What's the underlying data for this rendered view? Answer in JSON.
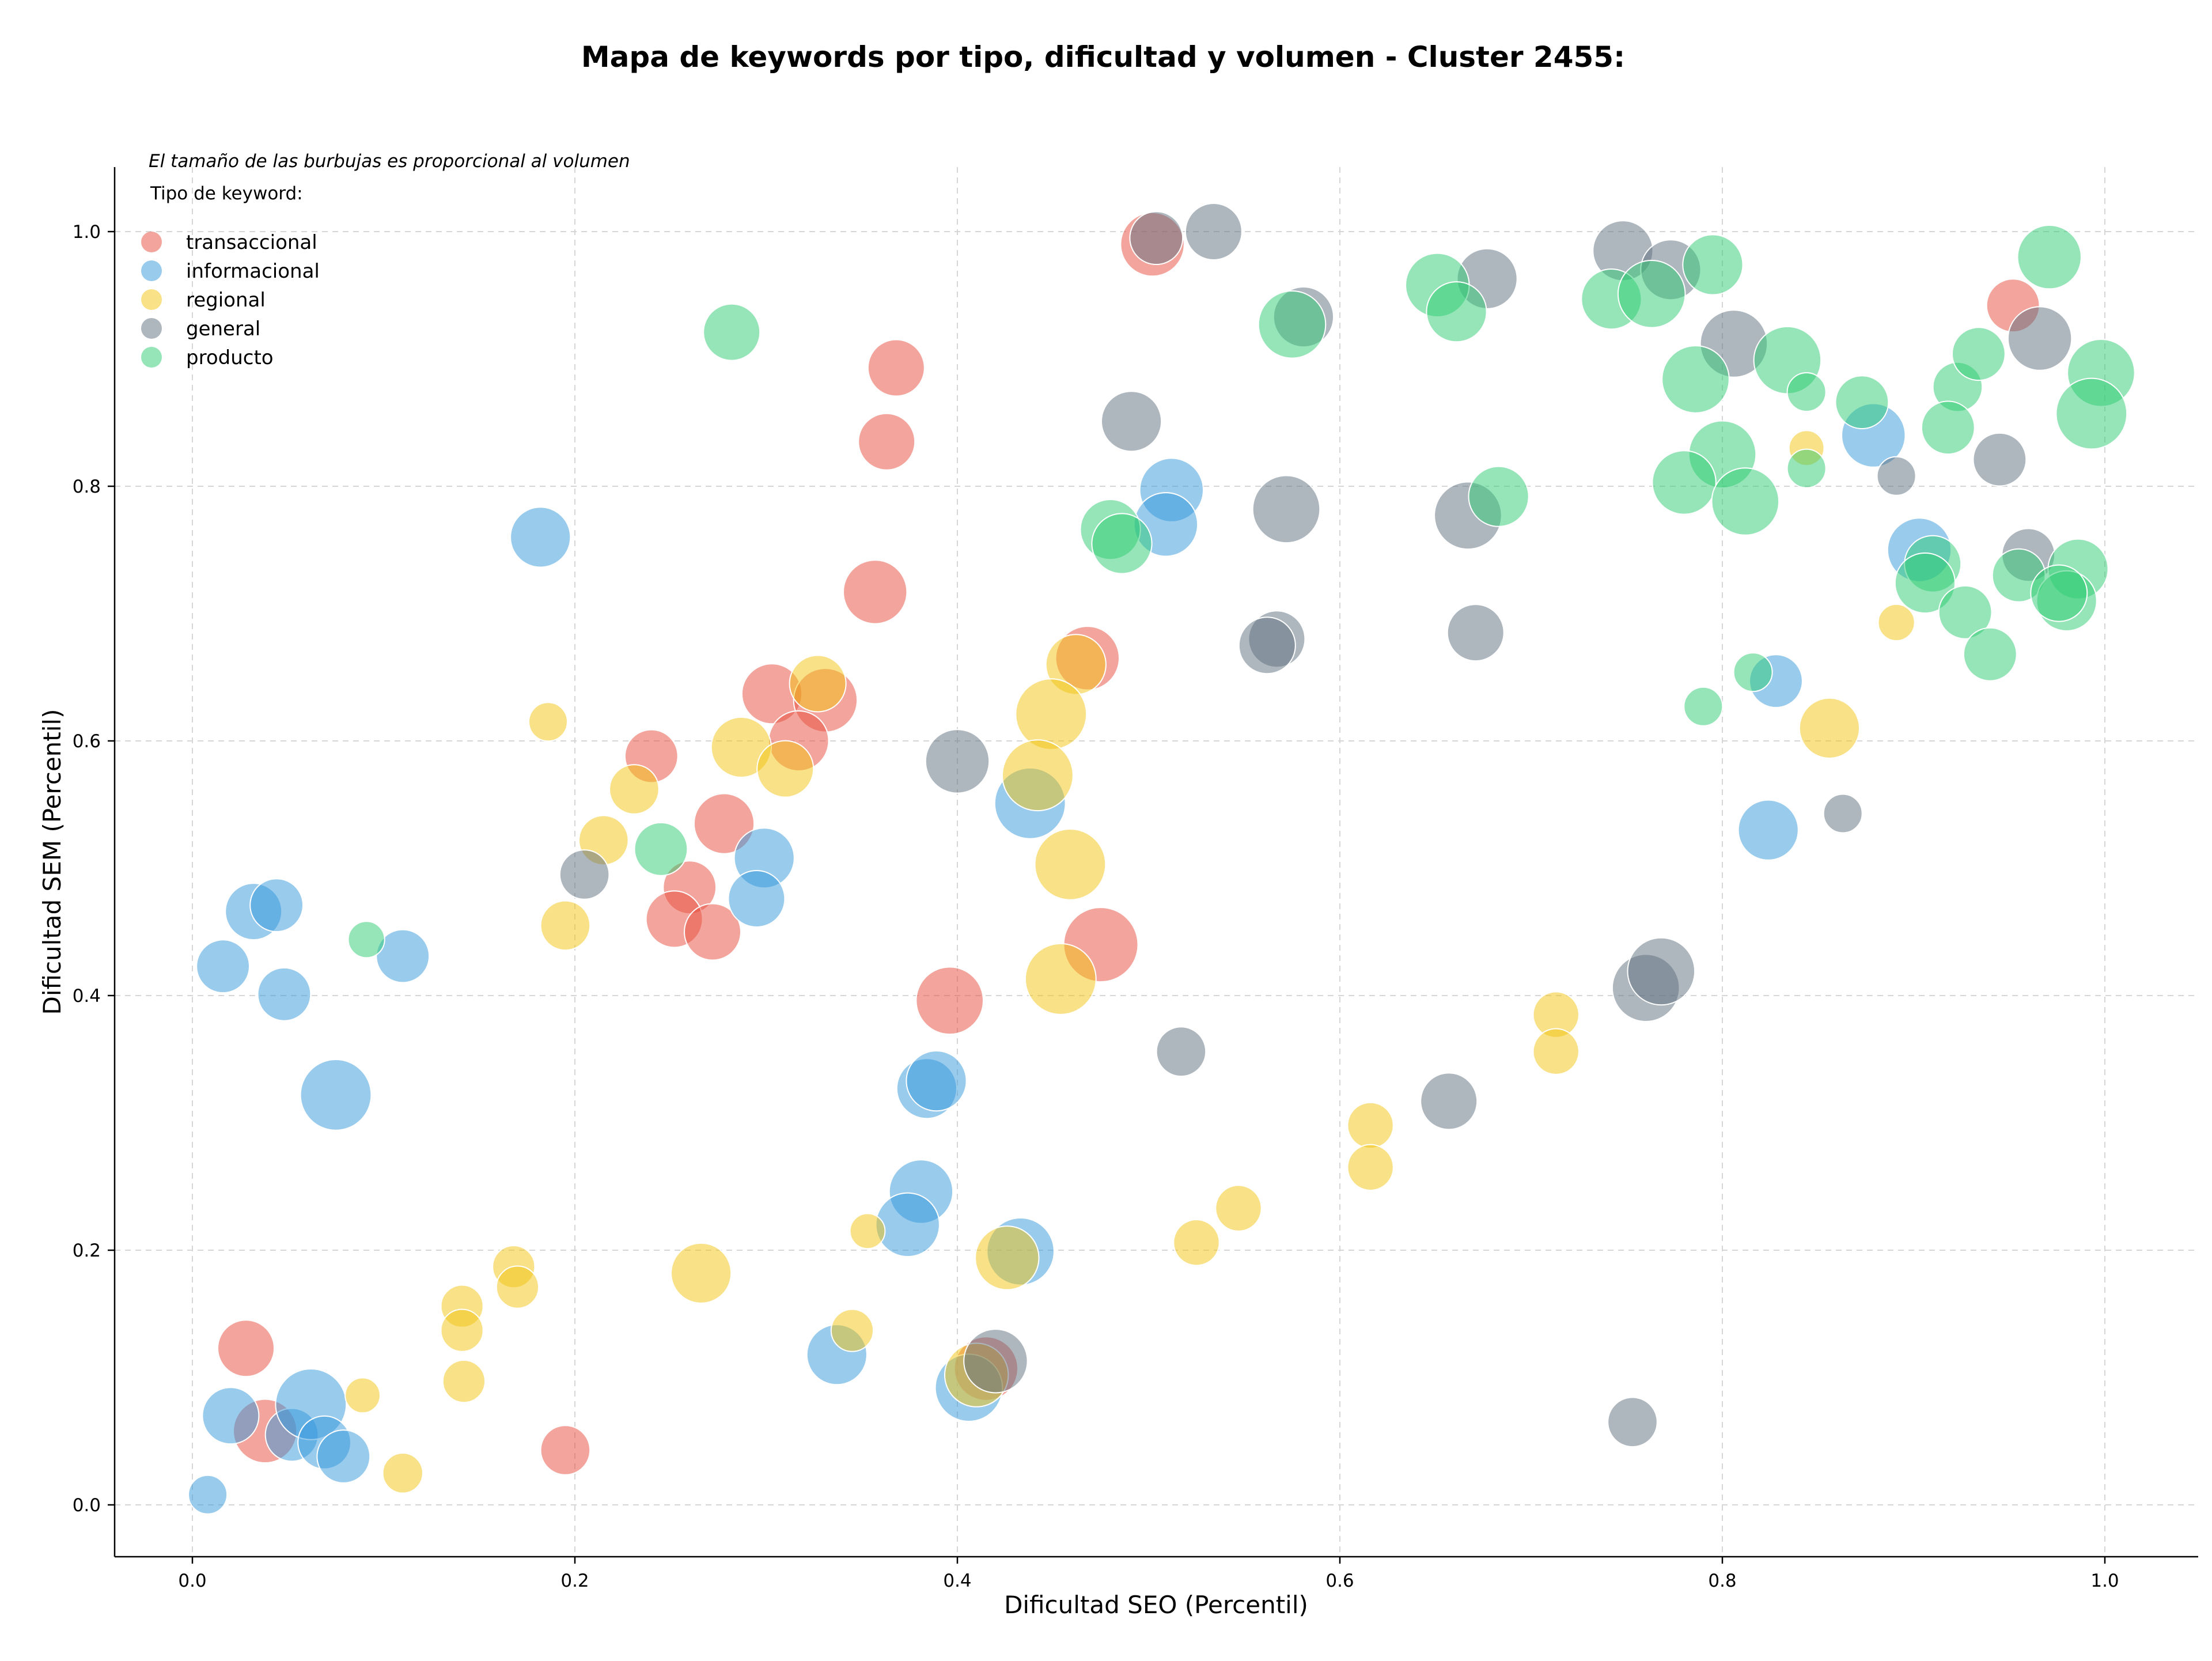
{
  "chart_data": {
    "type": "scatter",
    "title": "Mapa de keywords por tipo, dificultad y volumen - Cluster 2455:",
    "xlabel": "Dificultad SEO (Percentil)",
    "ylabel": "Dificultad SEM (Percentil)",
    "note": "El tamaño de las burbujas es proporcional al volumen",
    "legend_title": "Tipo de keyword:",
    "legend_position": "top-left",
    "grid": true,
    "xlim": [
      -0.04,
      1.05
    ],
    "ylim": [
      -0.04,
      1.05
    ],
    "x_ticks": [
      "0.0",
      "0.2",
      "0.4",
      "0.6",
      "0.8",
      "1.0"
    ],
    "y_ticks": [
      "0.0",
      "0.2",
      "0.4",
      "0.6",
      "0.8",
      "1.0"
    ],
    "series": [
      {
        "name": "transaccional",
        "color": "#e74c3c",
        "points": [
          [
            0.502,
            0.99,
            0.6
          ],
          [
            0.368,
            0.893,
            0.5
          ],
          [
            0.363,
            0.835,
            0.5
          ],
          [
            0.357,
            0.717,
            0.6
          ],
          [
            0.468,
            0.665,
            0.6
          ],
          [
            0.303,
            0.637,
            0.55
          ],
          [
            0.331,
            0.632,
            0.6
          ],
          [
            0.317,
            0.6,
            0.55
          ],
          [
            0.24,
            0.588,
            0.45
          ],
          [
            0.278,
            0.535,
            0.55
          ],
          [
            0.26,
            0.485,
            0.45
          ],
          [
            0.252,
            0.46,
            0.5
          ],
          [
            0.272,
            0.45,
            0.5
          ],
          [
            0.475,
            0.44,
            0.75
          ],
          [
            0.396,
            0.396,
            0.65
          ],
          [
            0.028,
            0.123,
            0.5
          ],
          [
            0.038,
            0.058,
            0.6
          ],
          [
            0.195,
            0.043,
            0.4
          ],
          [
            0.415,
            0.107,
            0.6
          ],
          [
            0.952,
            0.942,
            0.45
          ]
        ]
      },
      {
        "name": "informacional",
        "color": "#3498db",
        "points": [
          [
            0.182,
            0.76,
            0.55
          ],
          [
            0.512,
            0.797,
            0.6
          ],
          [
            0.509,
            0.77,
            0.6
          ],
          [
            0.438,
            0.551,
            0.7
          ],
          [
            0.299,
            0.508,
            0.55
          ],
          [
            0.295,
            0.476,
            0.5
          ],
          [
            0.032,
            0.466,
            0.5
          ],
          [
            0.044,
            0.471,
            0.45
          ],
          [
            0.016,
            0.423,
            0.45
          ],
          [
            0.048,
            0.401,
            0.45
          ],
          [
            0.11,
            0.431,
            0.45
          ],
          [
            0.075,
            0.322,
            0.7
          ],
          [
            0.384,
            0.327,
            0.55
          ],
          [
            0.389,
            0.333,
            0.55
          ],
          [
            0.381,
            0.246,
            0.6
          ],
          [
            0.374,
            0.22,
            0.6
          ],
          [
            0.433,
            0.199,
            0.65
          ],
          [
            0.337,
            0.118,
            0.55
          ],
          [
            0.406,
            0.092,
            0.65
          ],
          [
            0.02,
            0.07,
            0.5
          ],
          [
            0.052,
            0.055,
            0.45
          ],
          [
            0.062,
            0.079,
            0.7
          ],
          [
            0.069,
            0.049,
            0.45
          ],
          [
            0.079,
            0.038,
            0.45
          ],
          [
            0.008,
            0.008,
            0.25
          ],
          [
            0.879,
            0.84,
            0.6
          ],
          [
            0.903,
            0.75,
            0.6
          ],
          [
            0.828,
            0.647,
            0.45
          ],
          [
            0.824,
            0.53,
            0.55
          ]
        ]
      },
      {
        "name": "regional",
        "color": "#f1c40f",
        "points": [
          [
            0.186,
            0.615,
            0.25
          ],
          [
            0.327,
            0.645,
            0.5
          ],
          [
            0.287,
            0.595,
            0.55
          ],
          [
            0.31,
            0.578,
            0.5
          ],
          [
            0.231,
            0.562,
            0.4
          ],
          [
            0.215,
            0.522,
            0.4
          ],
          [
            0.195,
            0.455,
            0.4
          ],
          [
            0.462,
            0.66,
            0.55
          ],
          [
            0.449,
            0.621,
            0.7
          ],
          [
            0.442,
            0.573,
            0.7
          ],
          [
            0.459,
            0.503,
            0.7
          ],
          [
            0.454,
            0.413,
            0.7
          ],
          [
            0.168,
            0.187,
            0.3
          ],
          [
            0.17,
            0.171,
            0.3
          ],
          [
            0.141,
            0.156,
            0.3
          ],
          [
            0.141,
            0.137,
            0.3
          ],
          [
            0.142,
            0.097,
            0.3
          ],
          [
            0.11,
            0.025,
            0.27
          ],
          [
            0.089,
            0.086,
            0.2
          ],
          [
            0.266,
            0.182,
            0.55
          ],
          [
            0.353,
            0.215,
            0.2
          ],
          [
            0.345,
            0.137,
            0.3
          ],
          [
            0.426,
            0.194,
            0.6
          ],
          [
            0.41,
            0.102,
            0.6
          ],
          [
            0.525,
            0.206,
            0.35
          ],
          [
            0.547,
            0.233,
            0.35
          ],
          [
            0.616,
            0.298,
            0.35
          ],
          [
            0.616,
            0.265,
            0.35
          ],
          [
            0.713,
            0.385,
            0.35
          ],
          [
            0.713,
            0.356,
            0.35
          ],
          [
            0.856,
            0.61,
            0.55
          ],
          [
            0.844,
            0.83,
            0.2
          ],
          [
            0.891,
            0.693,
            0.22
          ]
        ]
      },
      {
        "name": "general",
        "color": "#5d6d7e",
        "points": [
          [
            0.504,
            0.995,
            0.45
          ],
          [
            0.534,
            1.0,
            0.5
          ],
          [
            0.491,
            0.851,
            0.55
          ],
          [
            0.581,
            0.933,
            0.55
          ],
          [
            0.572,
            0.782,
            0.65
          ],
          [
            0.677,
            0.963,
            0.55
          ],
          [
            0.667,
            0.777,
            0.65
          ],
          [
            0.567,
            0.68,
            0.5
          ],
          [
            0.562,
            0.675,
            0.5
          ],
          [
            0.671,
            0.685,
            0.5
          ],
          [
            0.4,
            0.584,
            0.6
          ],
          [
            0.205,
            0.495,
            0.4
          ],
          [
            0.517,
            0.356,
            0.4
          ],
          [
            0.657,
            0.317,
            0.5
          ],
          [
            0.76,
            0.406,
            0.65
          ],
          [
            0.768,
            0.419,
            0.65
          ],
          [
            0.42,
            0.113,
            0.6
          ],
          [
            0.753,
            0.065,
            0.4
          ],
          [
            0.748,
            0.985,
            0.55
          ],
          [
            0.773,
            0.97,
            0.55
          ],
          [
            0.806,
            0.912,
            0.65
          ],
          [
            0.966,
            0.916,
            0.6
          ],
          [
            0.891,
            0.808,
            0.25
          ],
          [
            0.945,
            0.821,
            0.45
          ],
          [
            0.96,
            0.746,
            0.45
          ],
          [
            0.863,
            0.543,
            0.25
          ]
        ]
      },
      {
        "name": "producto",
        "color": "#2ecc71",
        "points": [
          [
            0.282,
            0.921,
            0.5
          ],
          [
            0.575,
            0.927,
            0.65
          ],
          [
            0.651,
            0.958,
            0.6
          ],
          [
            0.661,
            0.937,
            0.55
          ],
          [
            0.683,
            0.792,
            0.55
          ],
          [
            0.48,
            0.766,
            0.55
          ],
          [
            0.486,
            0.755,
            0.55
          ],
          [
            0.245,
            0.515,
            0.45
          ],
          [
            0.091,
            0.444,
            0.22
          ],
          [
            0.742,
            0.947,
            0.55
          ],
          [
            0.763,
            0.951,
            0.65
          ],
          [
            0.795,
            0.974,
            0.55
          ],
          [
            0.786,
            0.884,
            0.65
          ],
          [
            0.834,
            0.899,
            0.65
          ],
          [
            0.8,
            0.825,
            0.65
          ],
          [
            0.78,
            0.803,
            0.6
          ],
          [
            0.812,
            0.788,
            0.65
          ],
          [
            0.844,
            0.874,
            0.25
          ],
          [
            0.844,
            0.814,
            0.25
          ],
          [
            0.873,
            0.866,
            0.45
          ],
          [
            0.816,
            0.654,
            0.25
          ],
          [
            0.79,
            0.627,
            0.25
          ],
          [
            0.923,
            0.878,
            0.4
          ],
          [
            0.934,
            0.904,
            0.45
          ],
          [
            0.918,
            0.846,
            0.45
          ],
          [
            0.971,
            0.98,
            0.6
          ],
          [
            0.998,
            0.889,
            0.65
          ],
          [
            0.993,
            0.857,
            0.7
          ],
          [
            0.91,
            0.739,
            0.5
          ],
          [
            0.906,
            0.724,
            0.55
          ],
          [
            0.927,
            0.701,
            0.45
          ],
          [
            0.94,
            0.668,
            0.45
          ],
          [
            0.955,
            0.73,
            0.45
          ],
          [
            0.986,
            0.735,
            0.55
          ],
          [
            0.98,
            0.71,
            0.55
          ],
          [
            0.976,
            0.716,
            0.5
          ]
        ]
      }
    ]
  }
}
